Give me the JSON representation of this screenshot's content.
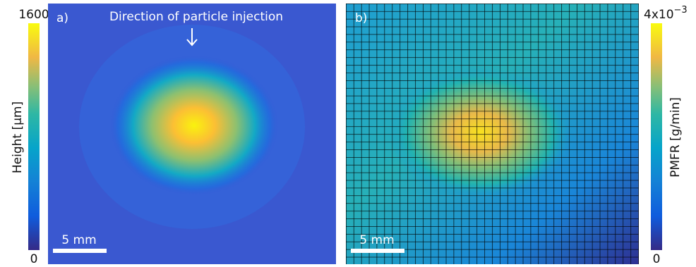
{
  "panels": [
    {
      "label": "a)",
      "annotation": "Direction of particle injection",
      "scale_bar": "5 mm"
    },
    {
      "label": "b)",
      "scale_bar": "5 mm"
    }
  ],
  "colorbars": [
    {
      "title": "Height [μm]",
      "max_label": "1600",
      "min_label": "0"
    },
    {
      "title": "PMFR [g/min]",
      "max_label": "4x10",
      "max_exponent": "−3",
      "min_label": "0"
    }
  ]
}
